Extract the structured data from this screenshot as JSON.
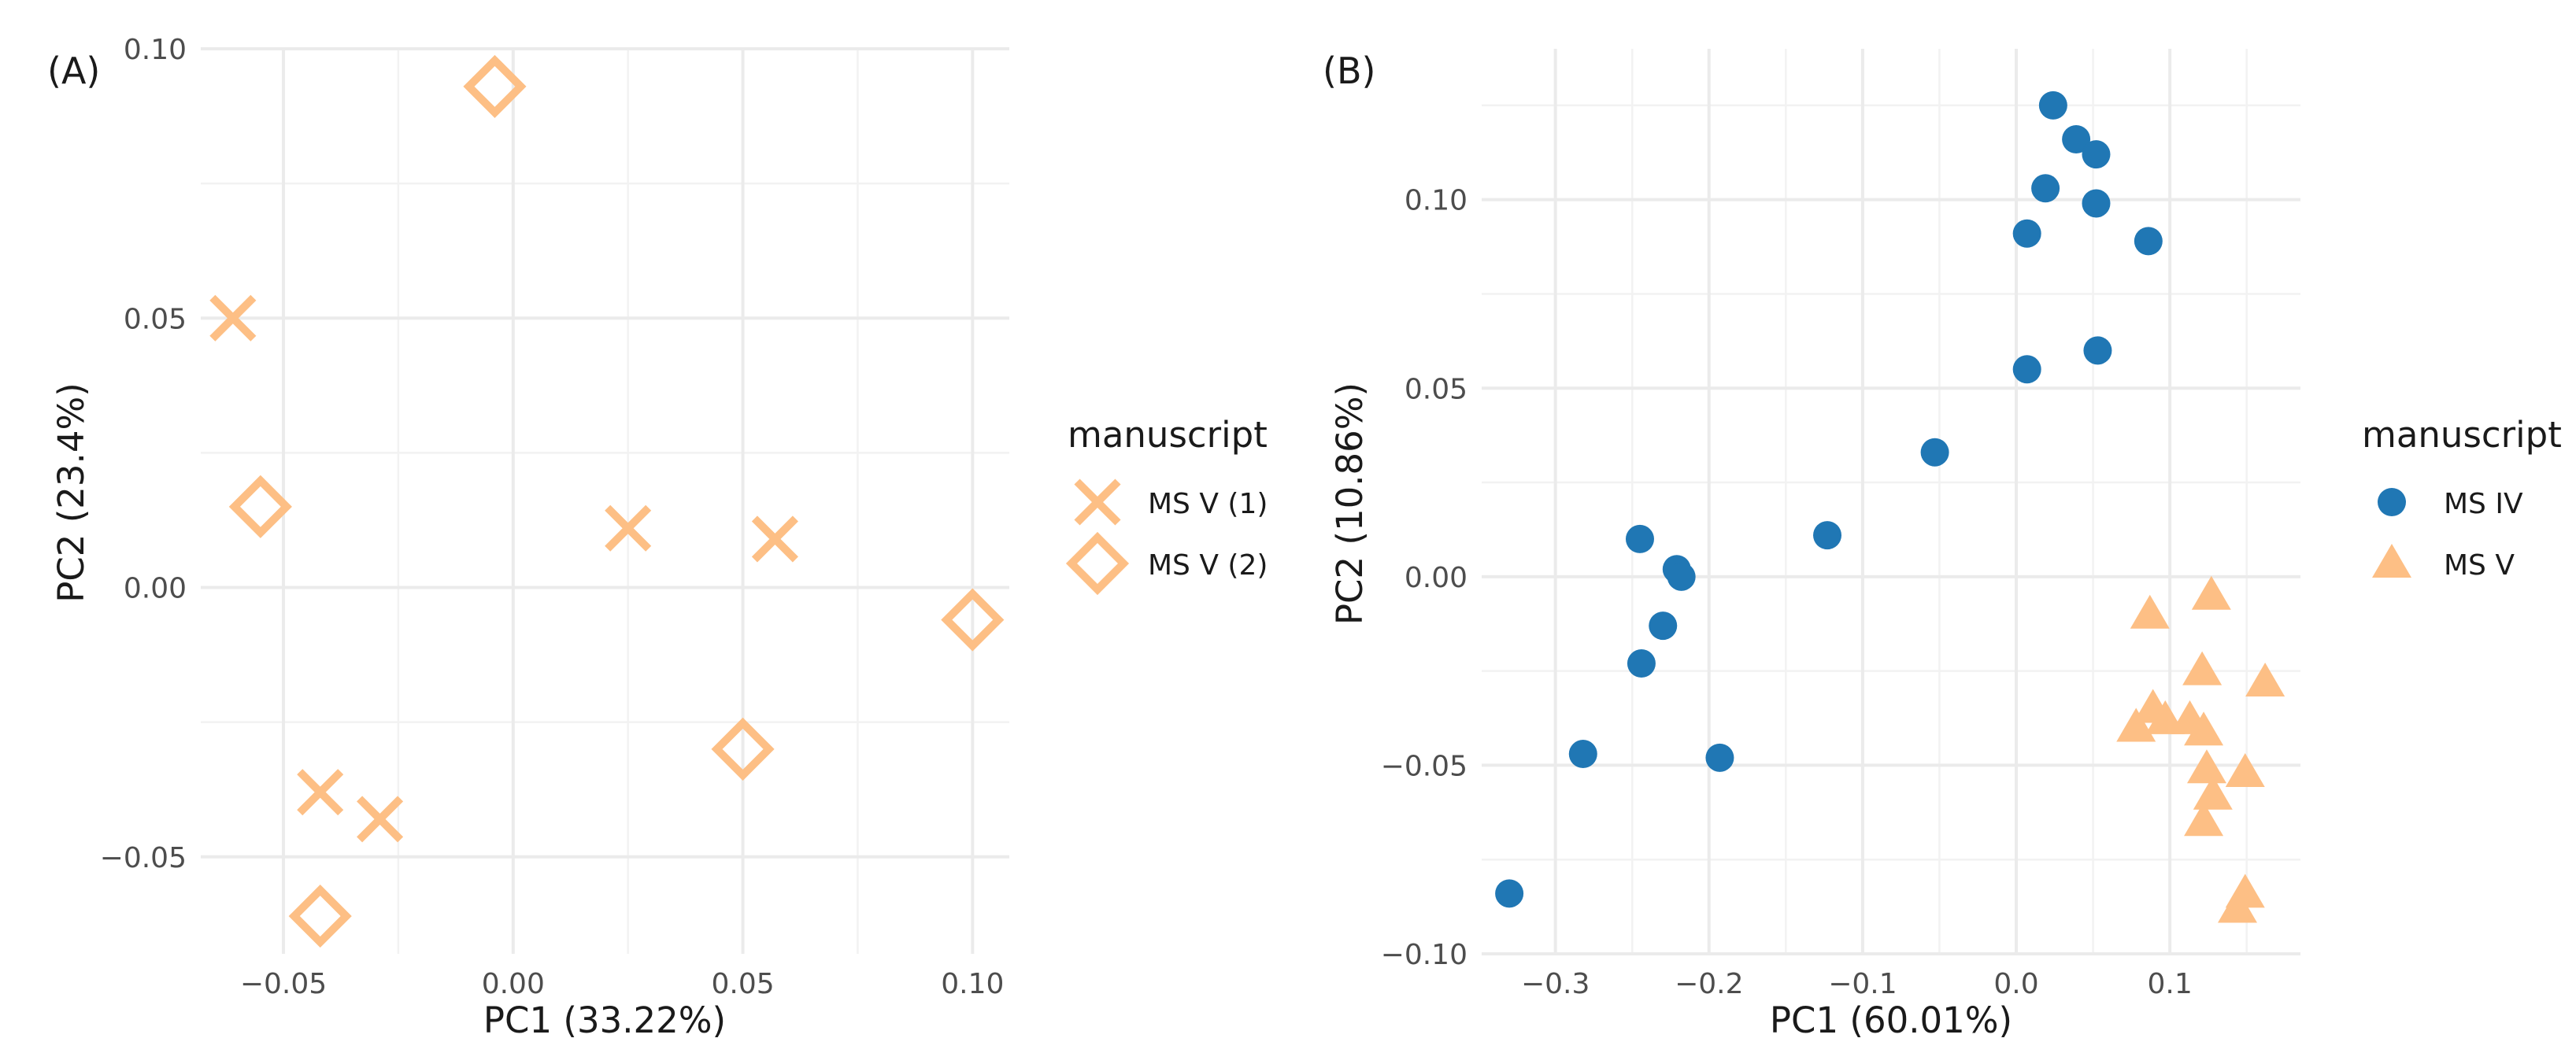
{
  "chart_data": [
    {
      "type": "scatter",
      "panel_label": "(A)",
      "xlabel": "PC1 (33.22%)",
      "ylabel": "PC2 (23.4%)",
      "xlim": [
        -0.068,
        0.108
      ],
      "ylim": [
        -0.068,
        0.1
      ],
      "x_ticks": [
        -0.05,
        0.0,
        0.05,
        0.1
      ],
      "x_tick_labels": [
        "−0.05",
        "0.00",
        "0.05",
        "0.10"
      ],
      "y_ticks": [
        -0.05,
        0.0,
        0.05,
        0.1
      ],
      "y_tick_labels": [
        "−0.05",
        "0.00",
        "0.05",
        "0.10"
      ],
      "grid": true,
      "legend": {
        "title": "manuscript",
        "position": "right",
        "entries": [
          {
            "label": "MS V (1)",
            "shape": "cross",
            "color": "#fdbf85"
          },
          {
            "label": "MS V (2)",
            "shape": "diamond",
            "color": "#fdbf85"
          }
        ]
      },
      "series": [
        {
          "name": "MS V (1)",
          "shape": "cross",
          "color": "#fdbf85",
          "points": [
            [
              -0.061,
              0.05
            ],
            [
              0.025,
              0.011
            ],
            [
              0.057,
              0.009
            ],
            [
              -0.042,
              -0.038
            ],
            [
              -0.029,
              -0.043
            ]
          ]
        },
        {
          "name": "MS V (2)",
          "shape": "diamond",
          "color": "#fdbf85",
          "points": [
            [
              -0.004,
              0.093
            ],
            [
              -0.055,
              0.015
            ],
            [
              0.1,
              -0.006
            ],
            [
              0.05,
              -0.03
            ],
            [
              -0.042,
              -0.061
            ]
          ]
        }
      ]
    },
    {
      "type": "scatter",
      "panel_label": "(B)",
      "xlabel": "PC1 (60.01%)",
      "ylabel": "PC2 (10.86%)",
      "xlim": [
        -0.348,
        0.185
      ],
      "ylim": [
        -0.1,
        0.14
      ],
      "x_ticks": [
        -0.3,
        -0.2,
        -0.1,
        0.0,
        0.1
      ],
      "x_tick_labels": [
        "−0.3",
        "−0.2",
        "−0.1",
        "0.0",
        "0.1"
      ],
      "y_ticks": [
        -0.1,
        -0.05,
        0.0,
        0.05,
        0.1
      ],
      "y_tick_labels": [
        "−0.10",
        "−0.05",
        "0.00",
        "0.05",
        "0.10"
      ],
      "grid": true,
      "legend": {
        "title": "manuscript",
        "position": "right",
        "entries": [
          {
            "label": "MS IV",
            "shape": "circle",
            "color": "#2077b4"
          },
          {
            "label": "MS V",
            "shape": "triangle",
            "color": "#fdbf85"
          }
        ]
      },
      "series": [
        {
          "name": "MS IV",
          "shape": "circle",
          "color": "#2077b4",
          "points": [
            [
              0.024,
              0.125
            ],
            [
              0.039,
              0.116
            ],
            [
              0.052,
              0.112
            ],
            [
              0.019,
              0.103
            ],
            [
              0.052,
              0.099
            ],
            [
              0.007,
              0.091
            ],
            [
              0.086,
              0.089
            ],
            [
              0.053,
              0.06
            ],
            [
              0.007,
              0.055
            ],
            [
              -0.053,
              0.033
            ],
            [
              -0.123,
              0.011
            ],
            [
              -0.245,
              0.01
            ],
            [
              -0.221,
              0.002
            ],
            [
              -0.218,
              0.0
            ],
            [
              -0.23,
              -0.013
            ],
            [
              -0.244,
              -0.023
            ],
            [
              -0.282,
              -0.047
            ],
            [
              -0.193,
              -0.048
            ],
            [
              -0.33,
              -0.084
            ]
          ]
        },
        {
          "name": "MS V",
          "shape": "triangle",
          "color": "#fdbf85",
          "points": [
            [
              0.127,
              -0.005
            ],
            [
              0.087,
              -0.01
            ],
            [
              0.121,
              -0.025
            ],
            [
              0.162,
              -0.028
            ],
            [
              0.089,
              -0.035
            ],
            [
              0.097,
              -0.038
            ],
            [
              0.113,
              -0.038
            ],
            [
              0.078,
              -0.04
            ],
            [
              0.122,
              -0.041
            ],
            [
              0.124,
              -0.051
            ],
            [
              0.149,
              -0.052
            ],
            [
              0.128,
              -0.058
            ],
            [
              0.122,
              -0.065
            ],
            [
              0.149,
              -0.084
            ],
            [
              0.144,
              -0.088
            ]
          ]
        }
      ]
    }
  ]
}
